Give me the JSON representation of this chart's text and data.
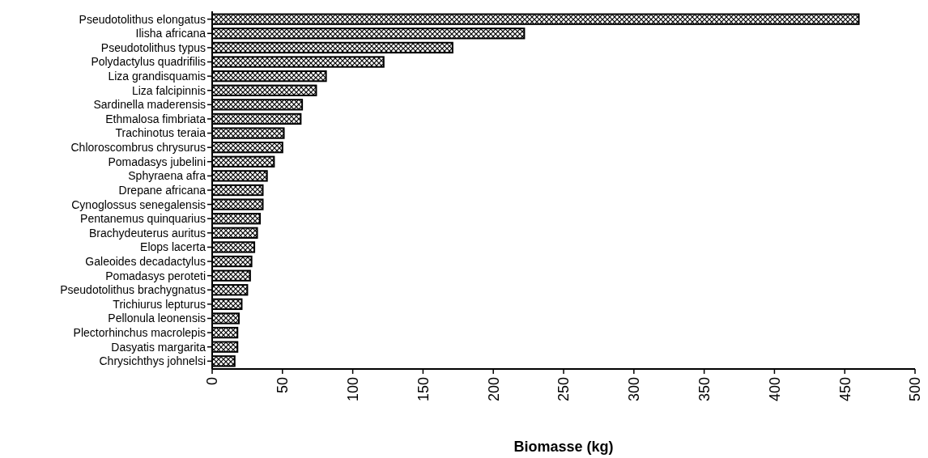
{
  "chart_data": {
    "type": "bar",
    "orientation": "horizontal",
    "xlabel": "Biomasse (kg)",
    "categories": [
      "Pseudotolithus elongatus",
      "Ilisha africana",
      "Pseudotolithus typus",
      "Polydactylus quadrifilis",
      "Liza grandisquamis",
      "Liza falcipinnis",
      "Sardinella maderensis",
      "Ethmalosa fimbriata",
      "Trachinotus teraia",
      "Chloroscombrus chrysurus",
      "Pomadasys jubelini",
      "Sphyraena afra",
      "Drepane africana",
      "Cynoglossus senegalensis",
      "Pentanemus quinquarius",
      "Brachydeuterus auritus",
      "Elops lacerta",
      "Galeoides decadactylus",
      "Pomadasys peroteti",
      "Pseudotolithus brachygnatus",
      "Trichiurus lepturus",
      "Pellonula leonensis",
      "Plectorhinchus macrolepis",
      "Dasyatis margarita",
      "Chrysichthys johnelsi"
    ],
    "values": [
      460,
      222,
      171,
      122,
      81,
      74,
      64,
      63,
      51,
      50,
      44,
      39,
      36,
      36,
      34,
      32,
      30,
      28,
      27,
      25,
      21,
      19,
      18,
      18,
      16
    ],
    "color": "#000000",
    "xlim": [
      0,
      500
    ],
    "xticks": [
      0,
      50,
      100,
      150,
      200,
      250,
      300,
      350,
      400,
      450,
      500
    ],
    "grid": false
  }
}
